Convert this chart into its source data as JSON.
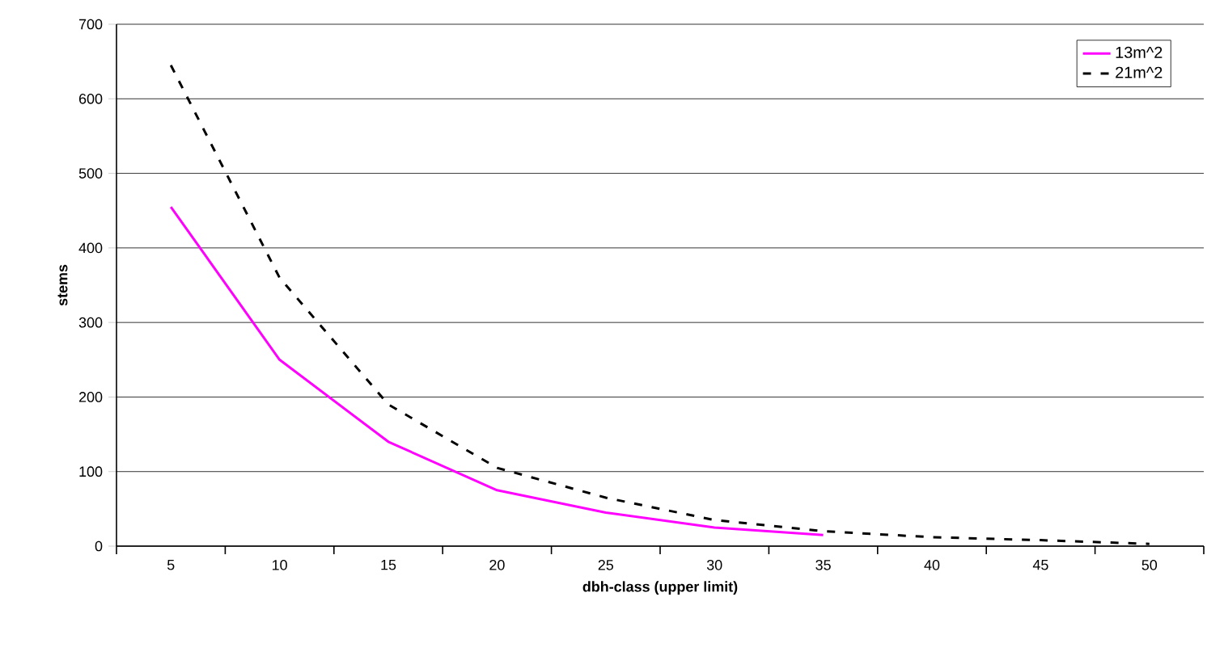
{
  "chart_data": {
    "type": "line",
    "xlabel": "dbh-class (upper limit)",
    "ylabel": "stems",
    "categories": [
      "5",
      "10",
      "15",
      "20",
      "25",
      "30",
      "35",
      "40",
      "45",
      "50"
    ],
    "series": [
      {
        "name": "13m^2",
        "color": "#ff00ff",
        "line_style": "solid",
        "values": [
          455,
          250,
          140,
          75,
          45,
          25,
          15,
          null,
          null,
          null
        ]
      },
      {
        "name": "21m^2",
        "color": "#000000",
        "line_style": "dashed",
        "values": [
          645,
          360,
          190,
          105,
          65,
          35,
          20,
          12,
          8,
          3
        ]
      }
    ],
    "ylim": [
      0,
      700
    ],
    "yticks": [
      0,
      100,
      200,
      300,
      400,
      500,
      600,
      700
    ],
    "grid": "y",
    "legend": "top right"
  }
}
